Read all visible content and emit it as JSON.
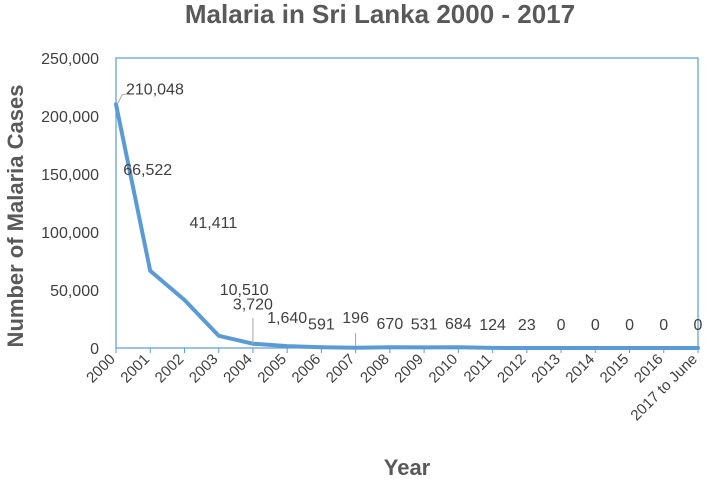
{
  "chart_data": {
    "type": "line",
    "title": "Malaria in Sri Lanka 2000 - 2017",
    "xlabel": "Year",
    "ylabel": "Number of Malaria Cases",
    "categories": [
      "2000",
      "2001",
      "2002",
      "2003",
      "2004",
      "2005",
      "2006",
      "2007",
      "2008",
      "2009",
      "2010",
      "2011",
      "2012",
      "2013",
      "2014",
      "2015",
      "2016",
      "2017 to June"
    ],
    "series": [
      {
        "values": [
          210048,
          66522,
          41411,
          10510,
          3720,
          1640,
          591,
          196,
          670,
          531,
          684,
          124,
          23,
          0,
          0,
          0,
          0,
          0
        ]
      }
    ],
    "data_labels": [
      "210,048",
      "66,522",
      "41,411",
      "10,510",
      "3,720",
      "1,640",
      "591",
      "196",
      "670",
      "531",
      "684",
      "124",
      "23",
      "0",
      "0",
      "0",
      "0",
      "0"
    ],
    "yticks": [
      0,
      50000,
      100000,
      150000,
      200000,
      250000
    ],
    "ytick_labels": [
      "0",
      "50,000",
      "100,000",
      "150,000",
      "200,000",
      "250,000"
    ],
    "ylim": [
      0,
      250000
    ],
    "grid": false,
    "legend": "none",
    "colors": {
      "line": "#5b9bd5",
      "plot_border": "#5b9bd5",
      "text": "#404040",
      "title": "#595959"
    }
  }
}
